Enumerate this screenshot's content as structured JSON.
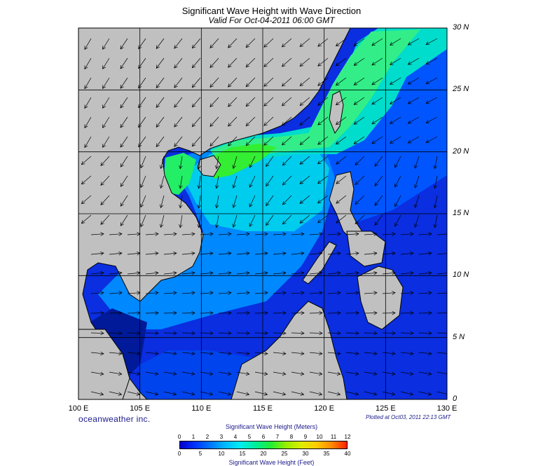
{
  "title": "Significant Wave Height with Wave Direction",
  "subtitle": "Valid For Oct-04-2011 06:00 GMT",
  "lat_labels": [
    {
      "text": "30 N",
      "lat": 30
    },
    {
      "text": "25 N",
      "lat": 25
    },
    {
      "text": "20 N",
      "lat": 20
    },
    {
      "text": "15 N",
      "lat": 15
    },
    {
      "text": "10 N",
      "lat": 10
    },
    {
      "text": "5 N",
      "lat": 5
    },
    {
      "text": "0",
      "lat": 0
    }
  ],
  "lon_labels": [
    {
      "text": "100 E",
      "lon": 100
    },
    {
      "text": "105 E",
      "lon": 105
    },
    {
      "text": "110 E",
      "lon": 110
    },
    {
      "text": "115 E",
      "lon": 115
    },
    {
      "text": "120 E",
      "lon": 120
    },
    {
      "text": "125 E",
      "lon": 125
    },
    {
      "text": "130 E",
      "lon": 130
    }
  ],
  "map_extent": {
    "lon_min": 100,
    "lon_max": 130,
    "lat_min": 0,
    "lat_max": 30
  },
  "brand": "oceanweather inc.",
  "plotted_at": "Plotted at Oct03, 2011 22:13 GMT",
  "legend": {
    "title_meters": "Significant Wave Height (Meters)",
    "title_feet": "Significant Wave Height (Feet)",
    "meters_ticks": [
      "0",
      "1",
      "2",
      "3",
      "4",
      "5",
      "6",
      "7",
      "8",
      "9",
      "10",
      "11",
      "12"
    ],
    "feet_ticks": [
      "0",
      "5",
      "10",
      "15",
      "20",
      "25",
      "30",
      "35",
      "40"
    ],
    "colors": [
      "#0000cc",
      "#0033ff",
      "#0077ff",
      "#00bbff",
      "#00eeee",
      "#00ee99",
      "#22ee33",
      "#99ee00",
      "#ddee00",
      "#ffcc00",
      "#ff8800",
      "#ff2200"
    ]
  },
  "colors": {
    "land": "#c0c0c0",
    "coast": "#000000",
    "grid": "#000000"
  }
}
